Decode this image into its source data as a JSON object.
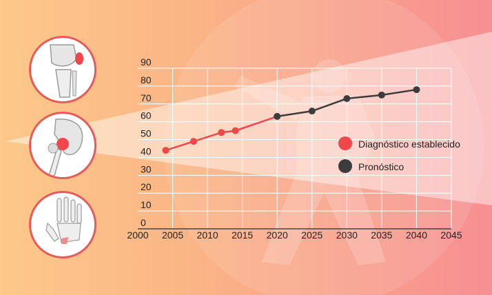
{
  "colors": {
    "diagnosed": "#f0474a",
    "forecast": "#3c3c3c",
    "grid": "#ffffff",
    "accent_ring": "#e85a5a"
  },
  "icons": [
    "knee-joint-icon",
    "hip-joint-icon",
    "hand-joint-icon"
  ],
  "chart_data": {
    "type": "line",
    "title": "",
    "xlabel": "",
    "ylabel": "",
    "xlim": [
      2000,
      2045
    ],
    "ylim": [
      0,
      90
    ],
    "x_ticks": [
      "2000",
      "2005",
      "2010",
      "2015",
      "2020",
      "2025",
      "2030",
      "2035",
      "2040",
      "2045"
    ],
    "y_ticks": [
      "0",
      "10",
      "20",
      "30",
      "40",
      "50",
      "60",
      "70",
      "80",
      "90"
    ],
    "grid": true,
    "legend_position": "right",
    "series": [
      {
        "name": "Diagnóstico establecido",
        "color": "#f0474a",
        "points": [
          [
            2004,
            44
          ],
          [
            2008,
            49
          ],
          [
            2012,
            54
          ],
          [
            2014,
            55
          ],
          [
            2020,
            63
          ]
        ]
      },
      {
        "name": "Pronóstico",
        "color": "#3c3c3c",
        "points": [
          [
            2020,
            63
          ],
          [
            2025,
            66
          ],
          [
            2030,
            73
          ],
          [
            2035,
            75
          ],
          [
            2040,
            78
          ]
        ]
      }
    ]
  }
}
